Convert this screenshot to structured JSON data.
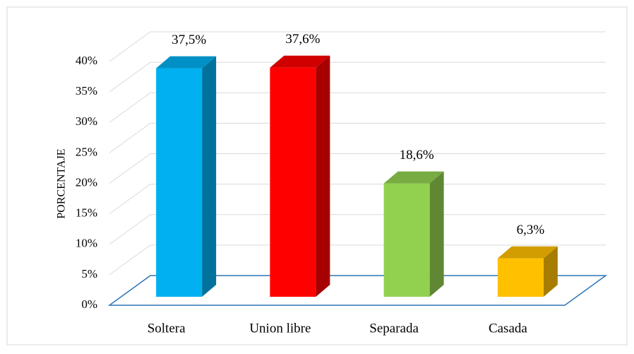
{
  "chart_data": {
    "type": "bar3d",
    "categories": [
      "Soltera",
      "Union libre",
      "Separada",
      "Casada"
    ],
    "values": [
      37.5,
      37.6,
      18.6,
      6.3
    ],
    "value_labels": [
      "37,5%",
      "37,6%",
      "18,6%",
      "6,3%"
    ],
    "colors": [
      "#00b0f0",
      "#ff0000",
      "#92d050",
      "#ffc000"
    ],
    "ylabel": "PORCENTAJE",
    "ylim": [
      0,
      40
    ],
    "yticks": [
      {
        "value": 0,
        "label": "0%"
      },
      {
        "value": 5,
        "label": "5%"
      },
      {
        "value": 10,
        "label": "10%"
      },
      {
        "value": 15,
        "label": "15%"
      },
      {
        "value": 20,
        "label": "20%"
      },
      {
        "value": 25,
        "label": "25%"
      },
      {
        "value": 30,
        "label": "30%"
      },
      {
        "value": 35,
        "label": "35%"
      },
      {
        "value": 40,
        "label": "40%"
      }
    ],
    "grid": true
  }
}
